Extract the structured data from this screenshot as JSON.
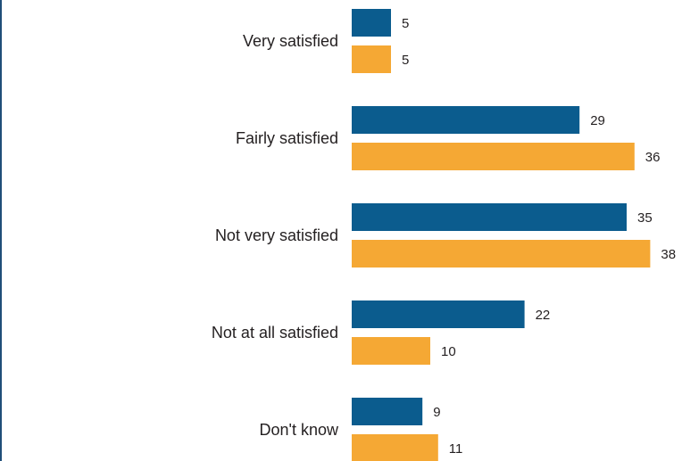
{
  "chart_data": {
    "type": "bar",
    "orientation": "horizontal",
    "categories": [
      "Very satisfied",
      "Fairly satisfied",
      "Not very satisfied",
      "Not at all satisfied",
      "Don't know"
    ],
    "series": [
      {
        "values": [
          5,
          29,
          35,
          22,
          9
        ],
        "color": "#0b5c8e"
      },
      {
        "values": [
          5,
          36,
          38,
          10,
          11
        ],
        "color": "#f5a834"
      }
    ],
    "xlim": [
      0,
      38
    ],
    "grid": false,
    "legend": "none"
  }
}
